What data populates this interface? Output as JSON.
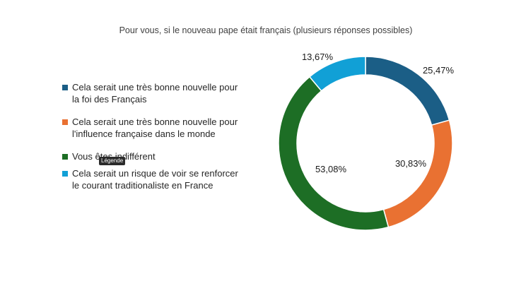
{
  "chart_data": {
    "type": "pie",
    "variant": "donut",
    "title": "Pour vous, si le nouveau pape était français (plusieurs réponses possibles)",
    "series": [
      {
        "name": "Cela serait une très bonne nouvelle pour la foi des Français",
        "value": 25.47,
        "label": "25,47%",
        "color": "#1b5e86"
      },
      {
        "name": "Cela serait une très bonne nouvelle pour l'influence française dans le monde",
        "value": 30.83,
        "label": "30,83%",
        "color": "#e97132"
      },
      {
        "name": "Vous êtes indifférent",
        "value": 53.08,
        "label": "53,08%",
        "color": "#1d6e25"
      },
      {
        "name": "Cela serait un risque de voir se renforcer le courant traditionaliste en France",
        "value": 13.67,
        "label": "13,67%",
        "color": "#11a0d6"
      }
    ],
    "legend_position": "left"
  },
  "tooltip": {
    "text": "Légende"
  }
}
